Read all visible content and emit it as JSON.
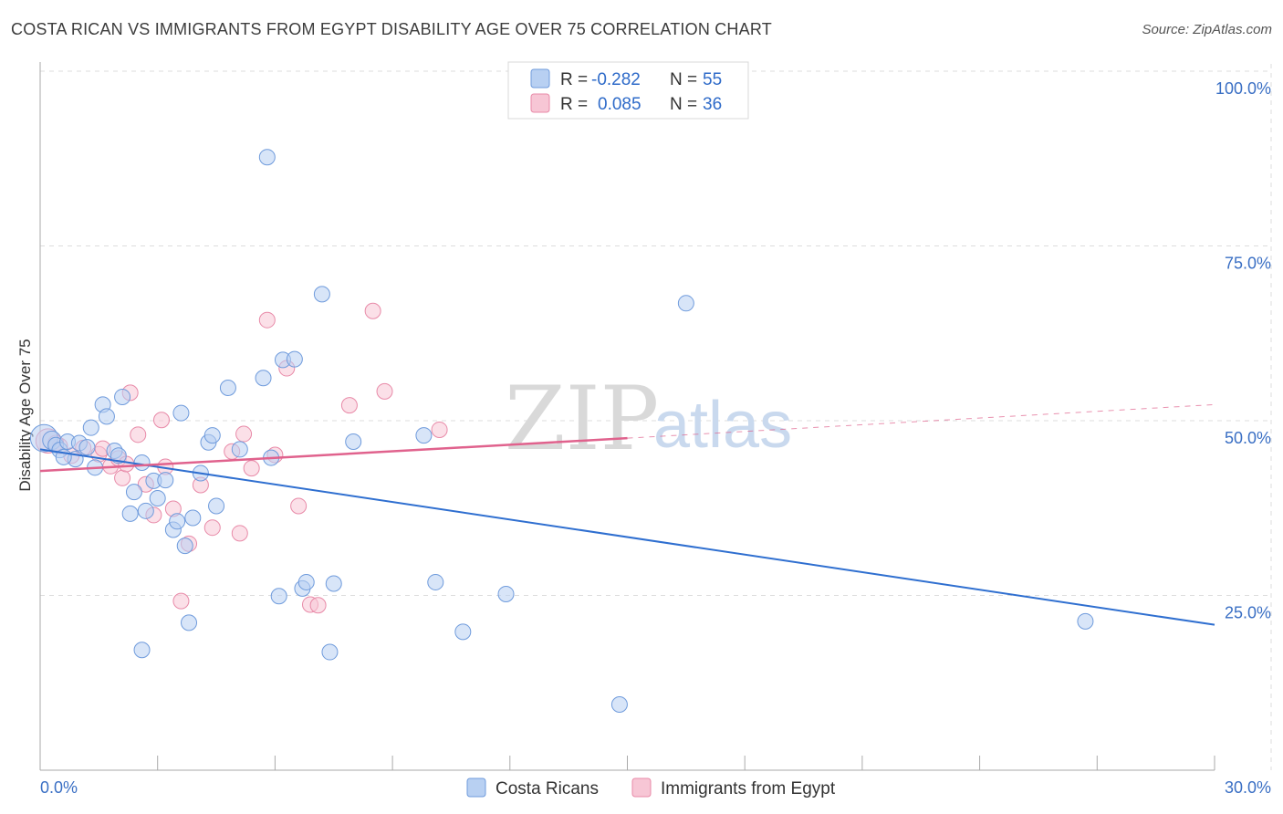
{
  "title": "COSTA RICAN VS IMMIGRANTS FROM EGYPT DISABILITY AGE OVER 75 CORRELATION CHART",
  "source": "Source: ZipAtlas.com",
  "watermark": {
    "zip": "ZIP",
    "atlas": "atlas"
  },
  "colors": {
    "blue_fill": "#b8d0f2",
    "blue_stroke": "#6f9bdc",
    "blue_line": "#2f6fd0",
    "pink_fill": "#f7c6d5",
    "pink_stroke": "#e88aa8",
    "pink_line": "#e0628d",
    "grid": "#dddddd",
    "tick_text": "#3a6fc4"
  },
  "legend_top": {
    "rows": [
      {
        "r_label": "R =",
        "r_value": "-0.282",
        "n_label": "N =",
        "n_value": "55",
        "color": "blue"
      },
      {
        "r_label": "R =",
        "r_value": "0.085",
        "n_label": "N =",
        "n_value": "36",
        "color": "pink"
      }
    ]
  },
  "legend_bottom": [
    "Costa Ricans",
    "Immigrants from Egypt"
  ],
  "chart_data": {
    "type": "scatter",
    "title": "COSTA RICAN VS IMMIGRANTS FROM EGYPT DISABILITY AGE OVER 75 CORRELATION CHART",
    "xlabel": "",
    "ylabel": "Disability Age Over 75",
    "xlim": [
      0,
      30
    ],
    "ylim": [
      0,
      100
    ],
    "x_tick_labels": [
      "0.0%",
      "30.0%"
    ],
    "y_ticks": [
      25,
      50,
      75,
      100
    ],
    "y_tick_labels": [
      "25.0%",
      "50.0%",
      "75.0%",
      "100.0%"
    ],
    "grid": true,
    "legend_position": "top-center",
    "series": [
      {
        "name": "Costa Ricans",
        "color": "blue",
        "trend": {
          "x0": 0,
          "y0": 45.9,
          "x1": 30,
          "y1": 20.8
        },
        "points": [
          [
            0.1,
            47.5,
            18
          ],
          [
            0.3,
            47.2,
            12
          ],
          [
            0.4,
            46.5,
            10
          ],
          [
            0.5,
            45.8,
            10
          ],
          [
            0.7,
            47.0,
            10
          ],
          [
            0.9,
            44.5,
            10
          ],
          [
            1.0,
            46.8,
            10
          ],
          [
            1.2,
            46.2,
            10
          ],
          [
            1.3,
            49.0,
            10
          ],
          [
            1.4,
            43.3,
            10
          ],
          [
            1.6,
            52.3,
            10
          ],
          [
            1.7,
            50.6,
            10
          ],
          [
            1.9,
            45.7,
            10
          ],
          [
            2.0,
            45.0,
            10
          ],
          [
            2.1,
            53.4,
            10
          ],
          [
            2.3,
            36.7,
            10
          ],
          [
            2.4,
            39.8,
            10
          ],
          [
            2.6,
            44.0,
            10
          ],
          [
            2.7,
            37.1,
            10
          ],
          [
            2.9,
            41.4,
            10
          ],
          [
            3.0,
            38.9,
            10
          ],
          [
            3.2,
            41.5,
            10
          ],
          [
            3.4,
            34.4,
            10
          ],
          [
            3.5,
            35.6,
            10
          ],
          [
            3.6,
            51.1,
            10
          ],
          [
            3.7,
            32.1,
            10
          ],
          [
            3.9,
            36.1,
            10
          ],
          [
            4.1,
            42.5,
            10
          ],
          [
            4.3,
            46.9,
            10
          ],
          [
            4.5,
            37.8,
            10
          ],
          [
            4.4,
            47.9,
            10
          ],
          [
            4.8,
            54.7,
            10
          ],
          [
            5.1,
            45.9,
            10
          ],
          [
            5.7,
            56.1,
            10
          ],
          [
            5.8,
            87.7,
            10
          ],
          [
            5.9,
            44.7,
            10
          ],
          [
            6.2,
            58.7,
            10
          ],
          [
            6.5,
            58.8,
            10
          ],
          [
            6.1,
            24.9,
            10
          ],
          [
            6.7,
            26.0,
            10
          ],
          [
            6.8,
            26.9,
            10
          ],
          [
            7.2,
            68.1,
            10
          ],
          [
            7.5,
            26.7,
            10
          ],
          [
            7.4,
            16.9,
            10
          ],
          [
            8.0,
            47.0,
            10
          ],
          [
            9.8,
            47.9,
            10
          ],
          [
            10.1,
            26.9,
            10
          ],
          [
            10.8,
            19.8,
            10
          ],
          [
            11.9,
            25.2,
            10
          ],
          [
            14.8,
            9.4,
            10
          ],
          [
            16.5,
            66.8,
            10
          ],
          [
            26.7,
            21.3,
            10
          ],
          [
            2.6,
            17.2,
            10
          ],
          [
            3.8,
            21.1,
            10
          ],
          [
            0.6,
            44.8,
            10
          ]
        ]
      },
      {
        "name": "Immigrants from Egypt",
        "color": "pink",
        "trend": {
          "x0": 0,
          "y0": 42.8,
          "x1": 15,
          "y1": 47.5
        },
        "trend_dashed": {
          "x0": 15,
          "y0": 47.5,
          "x1": 30,
          "y1": 52.3
        },
        "points": [
          [
            0.2,
            47.1,
            16
          ],
          [
            0.5,
            46.4,
            10
          ],
          [
            0.8,
            45.0,
            10
          ],
          [
            1.1,
            46.1,
            10
          ],
          [
            1.5,
            45.2,
            10
          ],
          [
            1.6,
            46.0,
            10
          ],
          [
            1.8,
            43.5,
            10
          ],
          [
            2.0,
            44.6,
            10
          ],
          [
            2.1,
            41.8,
            10
          ],
          [
            2.3,
            54.0,
            10
          ],
          [
            2.5,
            48.0,
            10
          ],
          [
            2.7,
            40.9,
            10
          ],
          [
            2.9,
            36.5,
            10
          ],
          [
            3.1,
            50.1,
            10
          ],
          [
            3.2,
            43.4,
            10
          ],
          [
            3.4,
            37.4,
            10
          ],
          [
            3.6,
            24.2,
            10
          ],
          [
            3.8,
            32.4,
            10
          ],
          [
            4.1,
            40.8,
            10
          ],
          [
            4.4,
            34.7,
            10
          ],
          [
            4.9,
            45.6,
            10
          ],
          [
            5.1,
            33.9,
            10
          ],
          [
            5.2,
            48.1,
            10
          ],
          [
            5.4,
            43.2,
            10
          ],
          [
            5.8,
            64.4,
            10
          ],
          [
            6.0,
            45.1,
            10
          ],
          [
            6.3,
            57.5,
            10
          ],
          [
            6.6,
            37.8,
            10
          ],
          [
            6.9,
            23.7,
            10
          ],
          [
            7.1,
            23.6,
            10
          ],
          [
            7.9,
            52.2,
            10
          ],
          [
            8.5,
            65.7,
            10
          ],
          [
            8.8,
            54.2,
            10
          ],
          [
            10.2,
            48.7,
            10
          ],
          [
            2.2,
            43.8,
            10
          ],
          [
            0.4,
            46.8,
            10
          ]
        ]
      }
    ]
  }
}
